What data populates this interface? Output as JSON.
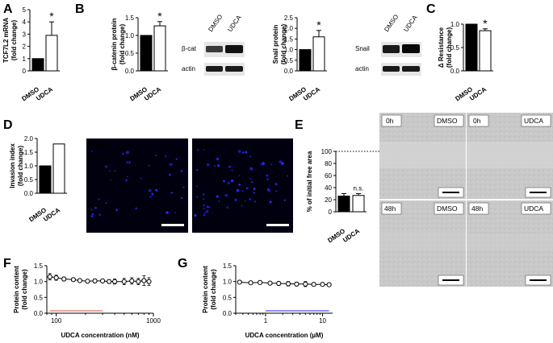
{
  "panel_letters": {
    "A": "A",
    "B": "B",
    "C": "C",
    "D": "D",
    "E": "E",
    "F": "F",
    "G": "G"
  },
  "colors": {
    "dmso_bar": "#000000",
    "udca_bar": "#ffffff",
    "f_hline": "#e07060",
    "g_hline": "#4a4af0",
    "micro_bg": "#000010",
    "micro_dot": "#2a2aff"
  },
  "significance": {
    "star": "*",
    "ns": "n.s."
  },
  "western_blots": {
    "b_left": {
      "lanes": [
        "DMSO",
        "UDCA"
      ],
      "rows": [
        "β-cat",
        "actin"
      ]
    },
    "b_right": {
      "lanes": [
        "DMSO",
        "UDCA"
      ],
      "rows": [
        "Snail",
        "actin"
      ]
    }
  },
  "micrographs": {
    "d": [
      "DMSO",
      "UDCA"
    ]
  },
  "wound_images": {
    "times": [
      "0h",
      "48h"
    ],
    "conditions": [
      "DMSO",
      "UDCA"
    ]
  },
  "chart_data": [
    {
      "id": "A",
      "type": "bar",
      "categories": [
        "DMSO",
        "UDCA"
      ],
      "values": [
        1.0,
        2.9
      ],
      "errors": [
        0,
        1.1
      ],
      "ylim": [
        0,
        5
      ],
      "yticks": [
        "0",
        "1",
        "2",
        "3",
        "4",
        "5"
      ],
      "ylabel": [
        "TCF7L2 mRNA",
        "(fold change)"
      ],
      "xlabel": "",
      "title": "",
      "annotation": "*"
    },
    {
      "id": "B1",
      "type": "bar",
      "categories": [
        "DMSO",
        "UDCA"
      ],
      "values": [
        1.0,
        1.27
      ],
      "errors": [
        0,
        0.12
      ],
      "ylim": [
        0,
        1.5
      ],
      "yticks": [
        "0.0",
        "0.5",
        "1.0",
        "1.5"
      ],
      "ylabel": [
        "β-catenin protein",
        "(fold change)"
      ],
      "xlabel": "",
      "title": "",
      "annotation": "*"
    },
    {
      "id": "B2",
      "type": "bar",
      "categories": [
        "DMSO",
        "UDCA"
      ],
      "values": [
        1.0,
        1.6
      ],
      "errors": [
        0,
        0.3
      ],
      "ylim": [
        0,
        2.5
      ],
      "yticks": [
        "0.0",
        "0.5",
        "1.0",
        "1.5",
        "2.0",
        "2.5"
      ],
      "ylabel": [
        "Snail protein",
        "(fold change)"
      ],
      "xlabel": "",
      "title": "",
      "annotation": "*"
    },
    {
      "id": "C",
      "type": "bar",
      "categories": [
        "DMSO",
        "UDCA"
      ],
      "values": [
        1.0,
        0.86
      ],
      "errors": [
        0,
        0.04
      ],
      "ylim": [
        0,
        1.0
      ],
      "yticks": [
        "0.0",
        "0.5",
        "1.0"
      ],
      "ylabel": [
        "Δ Resistance",
        "(fold change)"
      ],
      "xlabel": "",
      "title": "",
      "annotation": "*"
    },
    {
      "id": "D",
      "type": "bar",
      "categories": [
        "DMSO",
        "UDCA"
      ],
      "values": [
        1.0,
        1.8
      ],
      "errors": [
        0,
        0
      ],
      "ylim": [
        0,
        2.0
      ],
      "yticks": [
        "0.0",
        "0.5",
        "1.0",
        "1.5",
        "2.0"
      ],
      "ylabel": [
        "Invasion index",
        "(fold change)"
      ],
      "xlabel": "",
      "title": "",
      "annotation": ""
    },
    {
      "id": "E",
      "type": "bar",
      "categories": [
        "DMSO",
        "UDCA"
      ],
      "values": [
        26,
        27
      ],
      "errors": [
        4,
        3
      ],
      "ylim": [
        0,
        100
      ],
      "yticks": [
        "0",
        "20",
        "40",
        "60",
        "80",
        "100"
      ],
      "ylabel": [
        "% of initial free area"
      ],
      "xlabel": "",
      "title": "",
      "annotation": "n.s.",
      "reference_line": 100
    },
    {
      "id": "F",
      "type": "line",
      "x": [
        86,
        100,
        120,
        150,
        175,
        210,
        250,
        300,
        350,
        400,
        500,
        600,
        700,
        800,
        900
      ],
      "y": [
        1.15,
        1.12,
        1.08,
        1.06,
        1.03,
        1.01,
        1.02,
        1.02,
        1.0,
        1.0,
        1.0,
        1.02,
        1.0,
        1.03,
        1.0
      ],
      "errors": [
        0.1,
        0.08,
        0.06,
        0.05,
        0.05,
        0.05,
        0.06,
        0.05,
        0.06,
        0.08,
        0.1,
        0.1,
        0.1,
        0.15,
        0.12
      ],
      "xscale": "log",
      "xlim": [
        80,
        1000
      ],
      "ylim": [
        0,
        1.5
      ],
      "yticks": [
        "0.0",
        "0.5",
        "1.0",
        "1.5"
      ],
      "xticks": [
        "100",
        "1000"
      ],
      "ylabel": [
        "Protein content",
        "(fold change)"
      ],
      "xlabel": "UDCA concentration (nM)",
      "hline": {
        "y": 0.0,
        "x": [
          86,
          300
        ]
      }
    },
    {
      "id": "G",
      "type": "line",
      "x": [
        0.35,
        0.55,
        0.8,
        1.2,
        1.7,
        2.5,
        3.5,
        5,
        7,
        10,
        13
      ],
      "y": [
        0.98,
        0.96,
        0.97,
        0.95,
        0.94,
        0.93,
        0.92,
        0.92,
        0.91,
        0.91,
        0.9
      ],
      "errors": [
        0.05,
        0.04,
        0.05,
        0.05,
        0.06,
        0.07,
        0.06,
        0.08,
        0.05,
        0.05,
        0.04
      ],
      "xscale": "log",
      "xlim": [
        0.3,
        15
      ],
      "ylim": [
        0,
        1.5
      ],
      "yticks": [
        "0.0",
        "0.5",
        "1.0",
        "1.5"
      ],
      "xticks": [
        "1",
        "10"
      ],
      "ylabel": [
        "Protein content",
        "(fold change)"
      ],
      "xlabel": "UDCA concentration (µM)",
      "hline": {
        "y": 0.0,
        "x": [
          1,
          13
        ]
      }
    }
  ]
}
